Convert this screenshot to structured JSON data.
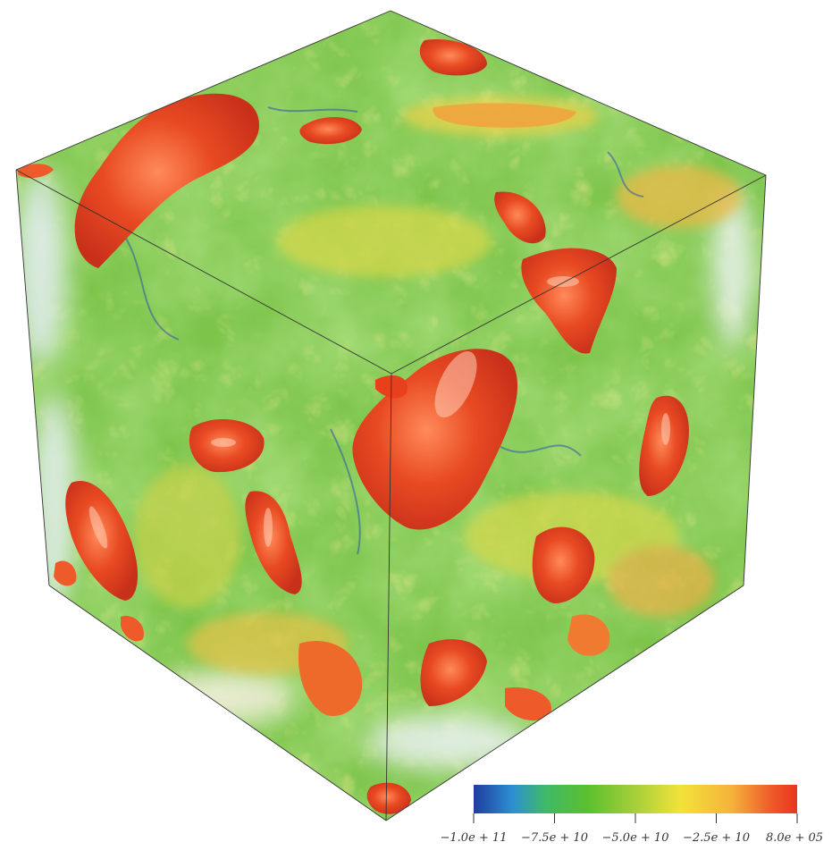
{
  "colorbar": {
    "ticks": [
      "−1.0e + 11",
      "−7.5e + 10",
      "−5.0e + 10",
      "−2.5e + 10",
      "8.0e + 05"
    ],
    "colors": [
      "#1f3d9e",
      "#2c8fd1",
      "#3fb96a",
      "#5bbf2e",
      "#a6cf3a",
      "#f2e33a",
      "#f6b13a",
      "#ef5a2a",
      "#e8361e"
    ]
  },
  "palette": {
    "green": "#6cc13f",
    "green_light": "#a9d657",
    "yellow": "#e8d64a",
    "orange": "#f07a30",
    "red": "#e8401f",
    "blue": "#2f5fb8",
    "edge": "#333333"
  }
}
